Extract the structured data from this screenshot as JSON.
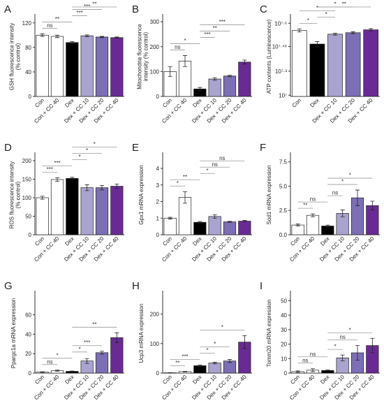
{
  "chart_data": [
    {
      "type": "bar",
      "panel": "A",
      "ylabel": [
        "GSH fluorescence intensity",
        "(% control)"
      ],
      "categories": [
        "Con",
        "Con + CC 40",
        "Dex",
        "Dex + CC 10",
        "Dex + CC 20",
        "Dex + CC 40"
      ],
      "values": [
        100,
        98,
        88,
        99,
        97,
        96
      ],
      "errors": [
        2,
        2,
        1.5,
        1.5,
        1,
        1
      ],
      "colors": [
        "#ffffff",
        "#ffffff",
        "#000000",
        "#a9a3d0",
        "#7c6fb5",
        "#6a2a95"
      ],
      "ylim": [
        0,
        130
      ],
      "yticks": [
        0,
        40,
        80,
        120
      ],
      "comparisons": [
        {
          "pair": [
            0,
            1
          ],
          "label": "ns"
        },
        {
          "pair": [
            0,
            2
          ],
          "label": "**"
        },
        {
          "pair": [
            2,
            3
          ],
          "label": "***"
        },
        {
          "pair": [
            2,
            4
          ],
          "label": "***"
        },
        {
          "pair": [
            2,
            5
          ],
          "label": "**"
        }
      ]
    },
    {
      "type": "bar",
      "panel": "B",
      "ylabel": [
        "Mitochondria fluorescence",
        "intensity (% control)"
      ],
      "categories": [
        "Con",
        "Con + CC 40",
        "Dex",
        "Dex + CC 10",
        "Dex + CC 20",
        "Dex + CC 40"
      ],
      "values": [
        100,
        142,
        30,
        70,
        82,
        138
      ],
      "errors": [
        20,
        22,
        6,
        5,
        3,
        8
      ],
      "colors": [
        "#ffffff",
        "#ffffff",
        "#000000",
        "#a9a3d0",
        "#7c6fb5",
        "#6a2a95"
      ],
      "ylim": [
        0,
        320
      ],
      "yticks": [
        0,
        100,
        200,
        300
      ],
      "comparisons": [
        {
          "pair": [
            0,
            1
          ],
          "label": "ns"
        },
        {
          "pair": [
            0,
            2
          ],
          "label": "*"
        },
        {
          "pair": [
            2,
            3
          ],
          "label": "***"
        },
        {
          "pair": [
            2,
            4
          ],
          "label": "**"
        },
        {
          "pair": [
            2,
            5
          ],
          "label": "***"
        }
      ]
    },
    {
      "type": "bar",
      "panel": "C",
      "ylabel": [
        "ATP contents (Luminescence)"
      ],
      "categories": [
        "Con",
        "Dex",
        "Dex + CC 10",
        "Dex + CC 20",
        "Dex + CC 40"
      ],
      "values": [
        36800000,
        31200000,
        35300000,
        35900000,
        37100000
      ],
      "errors": [
        600000,
        1000000,
        400000,
        400000,
        500000
      ],
      "colors": [
        "#ffffff",
        "#000000",
        "#a9a3d0",
        "#7c6fb5",
        "#6a2a95"
      ],
      "ylim": [
        9500000,
        42500000
      ],
      "yticks": [
        {
          "value": 10000000,
          "label": "10⁷"
        },
        {
          "value": 19952623,
          "label": "10⁷·³"
        },
        {
          "value": 30199517,
          "label": "10⁷·⁴⁸"
        },
        {
          "value": 39810717,
          "label": "10⁷·⁶"
        }
      ],
      "comparisons": [
        {
          "pair": [
            0,
            1
          ],
          "label": "*"
        },
        {
          "pair": [
            1,
            2
          ],
          "label": "*"
        },
        {
          "pair": [
            0,
            2
          ],
          "label": "*"
        },
        {
          "pair": [
            1,
            3
          ],
          "label": "*"
        },
        {
          "pair": [
            1,
            4
          ],
          "label": "**"
        }
      ]
    },
    {
      "type": "bar",
      "panel": "D",
      "ylabel": [
        "ROS fluorescence intensity",
        "(% control)"
      ],
      "categories": [
        "Con",
        "Con + CC 40",
        "Dex",
        "Dex + CC 10",
        "Dex + CC 20",
        "Dex + CC 40"
      ],
      "values": [
        100,
        149,
        152,
        127,
        127,
        131
      ],
      "errors": [
        4,
        5,
        3,
        8,
        6,
        6
      ],
      "colors": [
        "#ffffff",
        "#ffffff",
        "#000000",
        "#a9a3d0",
        "#7c6fb5",
        "#6a2a95"
      ],
      "ylim": [
        0,
        215
      ],
      "yticks": [
        0,
        50,
        100,
        150,
        200
      ],
      "comparisons": [
        {
          "pair": [
            0,
            1
          ],
          "label": "***"
        },
        {
          "pair": [
            0,
            2
          ],
          "label": "***"
        },
        {
          "pair": [
            2,
            3
          ],
          "label": "*"
        },
        {
          "pair": [
            2,
            4
          ],
          "label": "*"
        },
        {
          "pair": [
            2,
            5
          ],
          "label": "*"
        }
      ]
    },
    {
      "type": "bar",
      "panel": "E",
      "ylabel": [
        "Gpx1 mRNA expression"
      ],
      "categories": [
        "Con",
        "Con + CC 40",
        "Dex",
        "Dex + CC 10",
        "Dex + CC 20",
        "Dex + CC 40"
      ],
      "values": [
        1.0,
        2.25,
        0.75,
        1.1,
        0.78,
        0.82
      ],
      "errors": [
        0.05,
        0.35,
        0.05,
        0.1,
        0.03,
        0.04
      ],
      "colors": [
        "#ffffff",
        "#ffffff",
        "#000000",
        "#a9a3d0",
        "#7c6fb5",
        "#6a2a95"
      ],
      "ylim": [
        0,
        4.8
      ],
      "yticks": [
        0,
        1,
        2,
        3,
        4
      ],
      "comparisons": [
        {
          "pair": [
            0,
            1
          ],
          "label": "*"
        },
        {
          "pair": [
            0,
            2
          ],
          "label": "**"
        },
        {
          "pair": [
            2,
            3
          ],
          "label": "*"
        },
        {
          "pair": [
            2,
            4
          ],
          "label": "ns"
        },
        {
          "pair": [
            2,
            5
          ],
          "label": "ns"
        }
      ]
    },
    {
      "type": "bar",
      "panel": "F",
      "ylabel": [
        "Sod1 mRNA expression"
      ],
      "categories": [
        "Con",
        "Con + CC 40",
        "Dex",
        "Dex + CC 10",
        "Dex + CC 20",
        "Dex + CC 40"
      ],
      "values": [
        1.0,
        2.0,
        0.9,
        2.2,
        3.8,
        3.0
      ],
      "errors": [
        0.1,
        0.15,
        0.1,
        0.35,
        0.8,
        0.45
      ],
      "colors": [
        "#ffffff",
        "#ffffff",
        "#000000",
        "#a9a3d0",
        "#7c6fb5",
        "#6a2a95"
      ],
      "ylim": [
        0,
        8.2
      ],
      "yticks": [
        {
          "value": 0,
          "label": "0.0"
        },
        2.5,
        {
          "value": 5,
          "label": "5.0"
        },
        7.5
      ],
      "comparisons": [
        {
          "pair": [
            0,
            1
          ],
          "label": "**"
        },
        {
          "pair": [
            0,
            2
          ],
          "label": "ns"
        },
        {
          "pair": [
            2,
            3
          ],
          "label": "ns"
        },
        {
          "pair": [
            2,
            4
          ],
          "label": "*"
        },
        {
          "pair": [
            2,
            5
          ],
          "label": "*"
        }
      ]
    },
    {
      "type": "bar",
      "panel": "G",
      "ylabel": [
        "Ppargc1a mRNA expression"
      ],
      "categories": [
        "Con",
        "Con + CC 40",
        "Dex",
        "Dex + CC 10",
        "Dex + CC 20",
        "Dex + CC 40"
      ],
      "values": [
        1,
        2.5,
        1.8,
        12.5,
        21,
        36.5
      ],
      "errors": [
        0.3,
        0.5,
        0.3,
        2.5,
        1.5,
        5
      ],
      "colors": [
        "#ffffff",
        "#ffffff",
        "#000000",
        "#a9a3d0",
        "#7c6fb5",
        "#6a2a95"
      ],
      "ylim": [
        0,
        82
      ],
      "yticks": [
        0,
        20,
        40,
        60
      ],
      "comparisons": [
        {
          "pair": [
            0,
            1
          ],
          "label": "ns"
        },
        {
          "pair": [
            0,
            2
          ],
          "label": "*"
        },
        {
          "pair": [
            2,
            3
          ],
          "label": "*"
        },
        {
          "pair": [
            2,
            4
          ],
          "label": "***"
        },
        {
          "pair": [
            2,
            5
          ],
          "label": "**"
        }
      ]
    },
    {
      "type": "bar",
      "panel": "H",
      "ylabel": [
        "Ucp3 mRNA expression"
      ],
      "categories": [
        "Con",
        "Con + CC 40",
        "Dex",
        "Dex + CC 10",
        "Dex + CC 20",
        "Dex + CC 40"
      ],
      "values": [
        1,
        5,
        25,
        34,
        41,
        105
      ],
      "errors": [
        0.5,
        1,
        2,
        3,
        5,
        22
      ],
      "colors": [
        "#ffffff",
        "#ffffff",
        "#000000",
        "#a9a3d0",
        "#7c6fb5",
        "#6a2a95"
      ],
      "ylim": [
        0,
        270
      ],
      "yticks": [
        0,
        100,
        200
      ],
      "comparisons": [
        {
          "pair": [
            0,
            1
          ],
          "label": "**"
        },
        {
          "pair": [
            0,
            2
          ],
          "label": "***"
        },
        {
          "pair": [
            2,
            3
          ],
          "label": "*"
        },
        {
          "pair": [
            2,
            4
          ],
          "label": "*"
        },
        {
          "pair": [
            2,
            5
          ],
          "label": "*"
        }
      ]
    },
    {
      "type": "bar",
      "panel": "I",
      "ylabel": [
        "Tomm20 mRNA expression"
      ],
      "categories": [
        "Con",
        "Con + CC 40",
        "Dex",
        "Dex + CC 10",
        "Dex + CC 20",
        "Dex + CC 40"
      ],
      "values": [
        1,
        2,
        1.8,
        10.5,
        14,
        19
      ],
      "errors": [
        0.5,
        1,
        0.3,
        2,
        5,
        5
      ],
      "colors": [
        "#ffffff",
        "#ffffff",
        "#000000",
        "#a9a3d0",
        "#7c6fb5",
        "#6a2a95"
      ],
      "ylim": [
        0,
        55
      ],
      "yticks": [
        0,
        10,
        20,
        30,
        40,
        50
      ],
      "comparisons": [
        {
          "pair": [
            0,
            1
          ],
          "label": "ns"
        },
        {
          "pair": [
            0,
            2
          ],
          "label": "ns"
        },
        {
          "pair": [
            2,
            3
          ],
          "label": "*"
        },
        {
          "pair": [
            2,
            4
          ],
          "label": "ns"
        },
        {
          "pair": [
            2,
            5
          ],
          "label": "*"
        }
      ]
    }
  ]
}
